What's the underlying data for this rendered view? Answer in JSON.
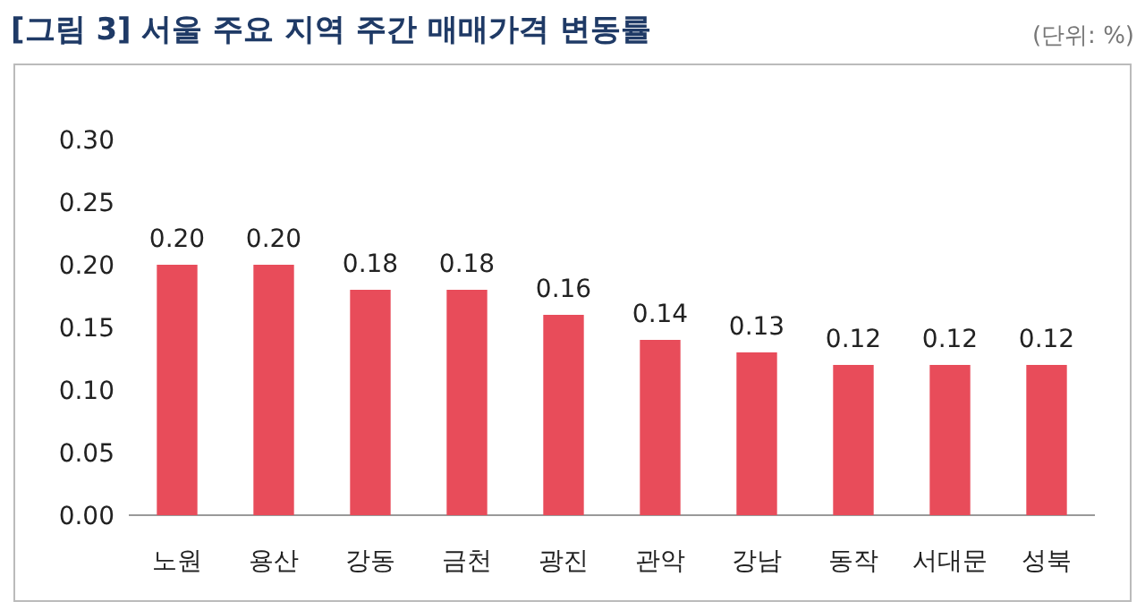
{
  "chart_data": {
    "type": "bar",
    "title": "[그림 3] 서울 주요 지역 주간 매매가격 변동률",
    "annotations": [
      "(단위: %)"
    ],
    "categories": [
      "노원",
      "용산",
      "강동",
      "금천",
      "광진",
      "관악",
      "강남",
      "동작",
      "서대문",
      "성북"
    ],
    "values": [
      0.2,
      0.2,
      0.18,
      0.18,
      0.16,
      0.14,
      0.13,
      0.12,
      0.12,
      0.12
    ],
    "color": "#e84c5a",
    "ylim": [
      0,
      0.3
    ],
    "yticks": [
      {
        "value": 0,
        "label": "0.00"
      },
      {
        "value": 0.05,
        "label": "0.05"
      },
      {
        "value": 0.1,
        "label": "0.10"
      },
      {
        "value": 0.15,
        "label": "0.15"
      },
      {
        "value": 0.2,
        "label": "0.20"
      },
      {
        "value": 0.25,
        "label": "0.25"
      },
      {
        "value": 0.3,
        "label": "0.30"
      }
    ],
    "value_labels": [
      "0.20",
      "0.20",
      "0.18",
      "0.18",
      "0.16",
      "0.14",
      "0.13",
      "0.12",
      "0.12",
      "0.12"
    ],
    "grid": false
  }
}
